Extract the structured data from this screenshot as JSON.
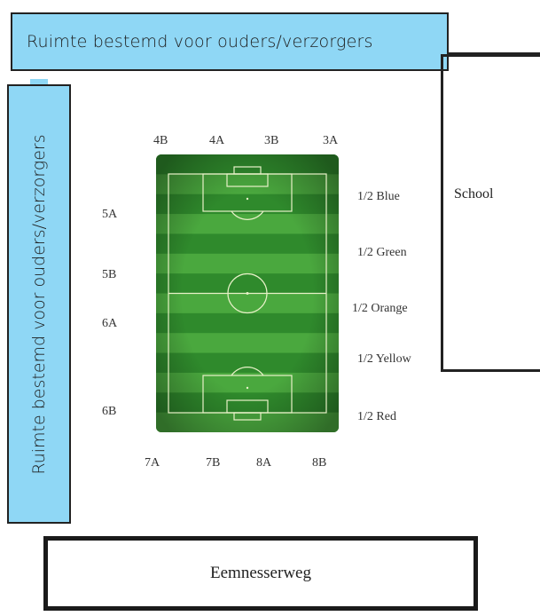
{
  "banners": {
    "top": "Ruimte bestemd voor ouders/verzorgers",
    "side": "Ruimte bestemd voor ouders/verzorgers"
  },
  "school": {
    "label": "School"
  },
  "road": {
    "label": "Eemnesserweg"
  },
  "field_labels": {
    "top": [
      "4B",
      "4A",
      "3B",
      "3A"
    ],
    "left": [
      "5A",
      "5B",
      "6A",
      "6B"
    ],
    "bottom": [
      "7A",
      "7B",
      "8A",
      "8B"
    ],
    "right": [
      "1/2 Blue",
      "1/2 Green",
      "1/2 Orange",
      "1/2 Yellow",
      "1/2 Red"
    ]
  },
  "colors": {
    "banner": "#8fd7f5",
    "pitch_dark": "#2f8a2c",
    "pitch_light": "#4aa83e",
    "outline": "#222222"
  }
}
